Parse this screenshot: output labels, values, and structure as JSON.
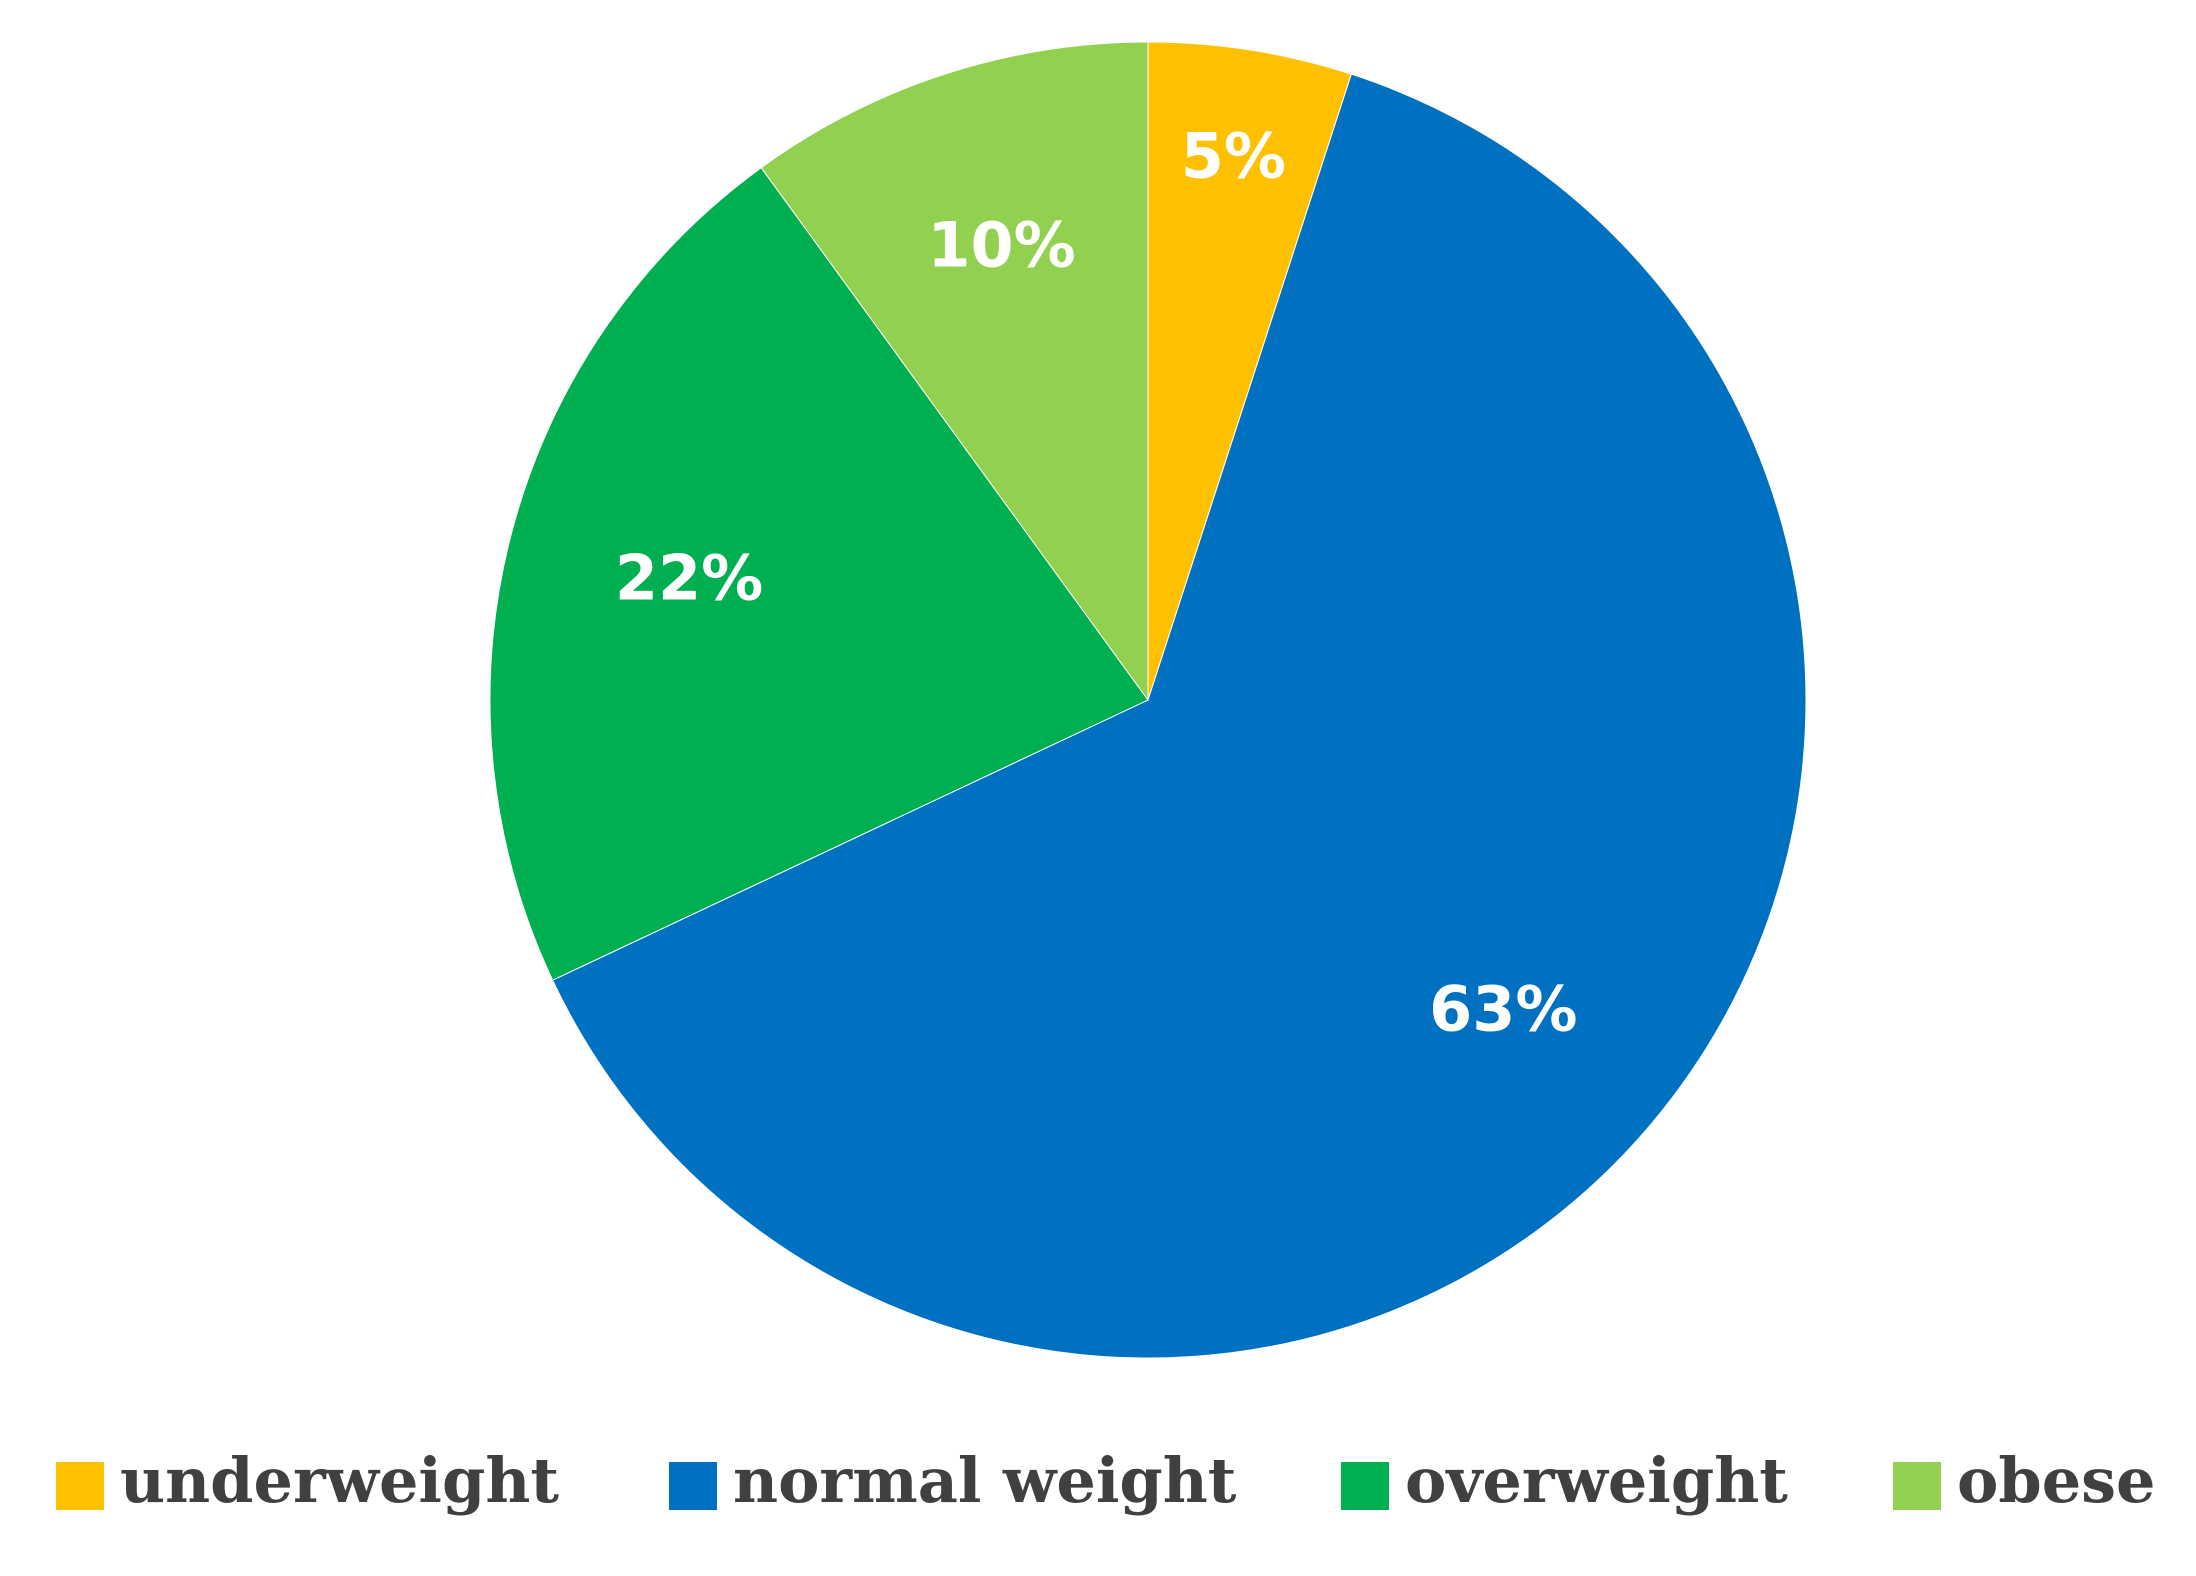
{
  "chart_data": {
    "type": "pie",
    "categories": [
      "underweight",
      "normal weight",
      "overweight",
      "obese"
    ],
    "values": [
      5,
      63,
      22,
      10
    ],
    "value_labels": [
      "5%",
      "63%",
      "22%",
      "10%"
    ],
    "colors": [
      "#FFC000",
      "#0070C0",
      "#00B050",
      "#92D050"
    ]
  }
}
